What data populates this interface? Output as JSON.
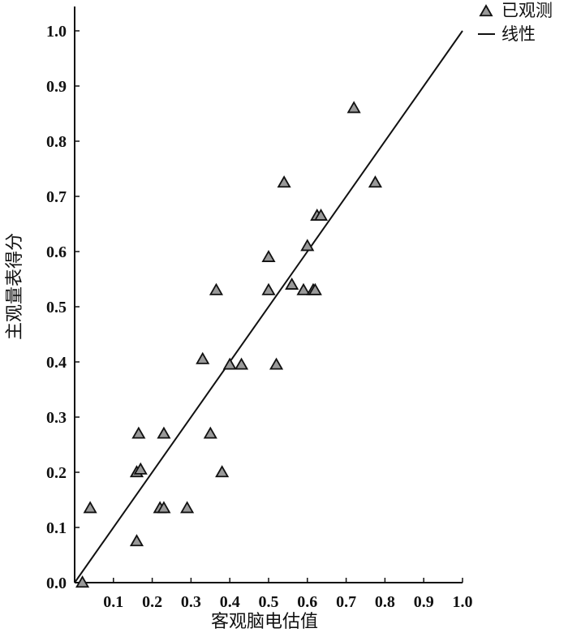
{
  "chart_data": {
    "type": "scatter",
    "xlabel": "客观脑电估值",
    "ylabel": "主观量表得分",
    "xlim": [
      0.0,
      1.0
    ],
    "ylim": [
      0.0,
      1.0
    ],
    "x_ticks": [
      "0.1",
      "0.2",
      "0.3",
      "0.4",
      "0.5",
      "0.6",
      "0.7",
      "0.8",
      "0.9",
      "1.0"
    ],
    "y_ticks": [
      "0.0",
      "0.1",
      "0.2",
      "0.3",
      "0.4",
      "0.5",
      "0.6",
      "0.7",
      "0.8",
      "0.9",
      "1.0"
    ],
    "grid": false,
    "legend_position": "top-right",
    "series": [
      {
        "name": "已观测",
        "marker": "triangle",
        "points": [
          [
            0.02,
            0.0
          ],
          [
            0.04,
            0.135
          ],
          [
            0.16,
            0.075
          ],
          [
            0.16,
            0.2
          ],
          [
            0.165,
            0.27
          ],
          [
            0.17,
            0.205
          ],
          [
            0.22,
            0.135
          ],
          [
            0.23,
            0.135
          ],
          [
            0.23,
            0.27
          ],
          [
            0.29,
            0.135
          ],
          [
            0.33,
            0.405
          ],
          [
            0.35,
            0.27
          ],
          [
            0.365,
            0.53
          ],
          [
            0.38,
            0.2
          ],
          [
            0.4,
            0.395
          ],
          [
            0.43,
            0.395
          ],
          [
            0.5,
            0.53
          ],
          [
            0.5,
            0.59
          ],
          [
            0.52,
            0.395
          ],
          [
            0.54,
            0.725
          ],
          [
            0.56,
            0.54
          ],
          [
            0.59,
            0.53
          ],
          [
            0.6,
            0.61
          ],
          [
            0.615,
            0.53
          ],
          [
            0.62,
            0.53
          ],
          [
            0.625,
            0.665
          ],
          [
            0.635,
            0.665
          ],
          [
            0.72,
            0.86
          ],
          [
            0.775,
            0.725
          ]
        ]
      },
      {
        "name": "线性",
        "marker": "line",
        "points": [
          [
            0.0,
            0.0
          ],
          [
            1.0,
            1.0
          ]
        ]
      }
    ]
  },
  "colors": {
    "marker_fill": "#999999",
    "marker_stroke": "#111111",
    "line": "#111111",
    "axis": "#111111"
  }
}
